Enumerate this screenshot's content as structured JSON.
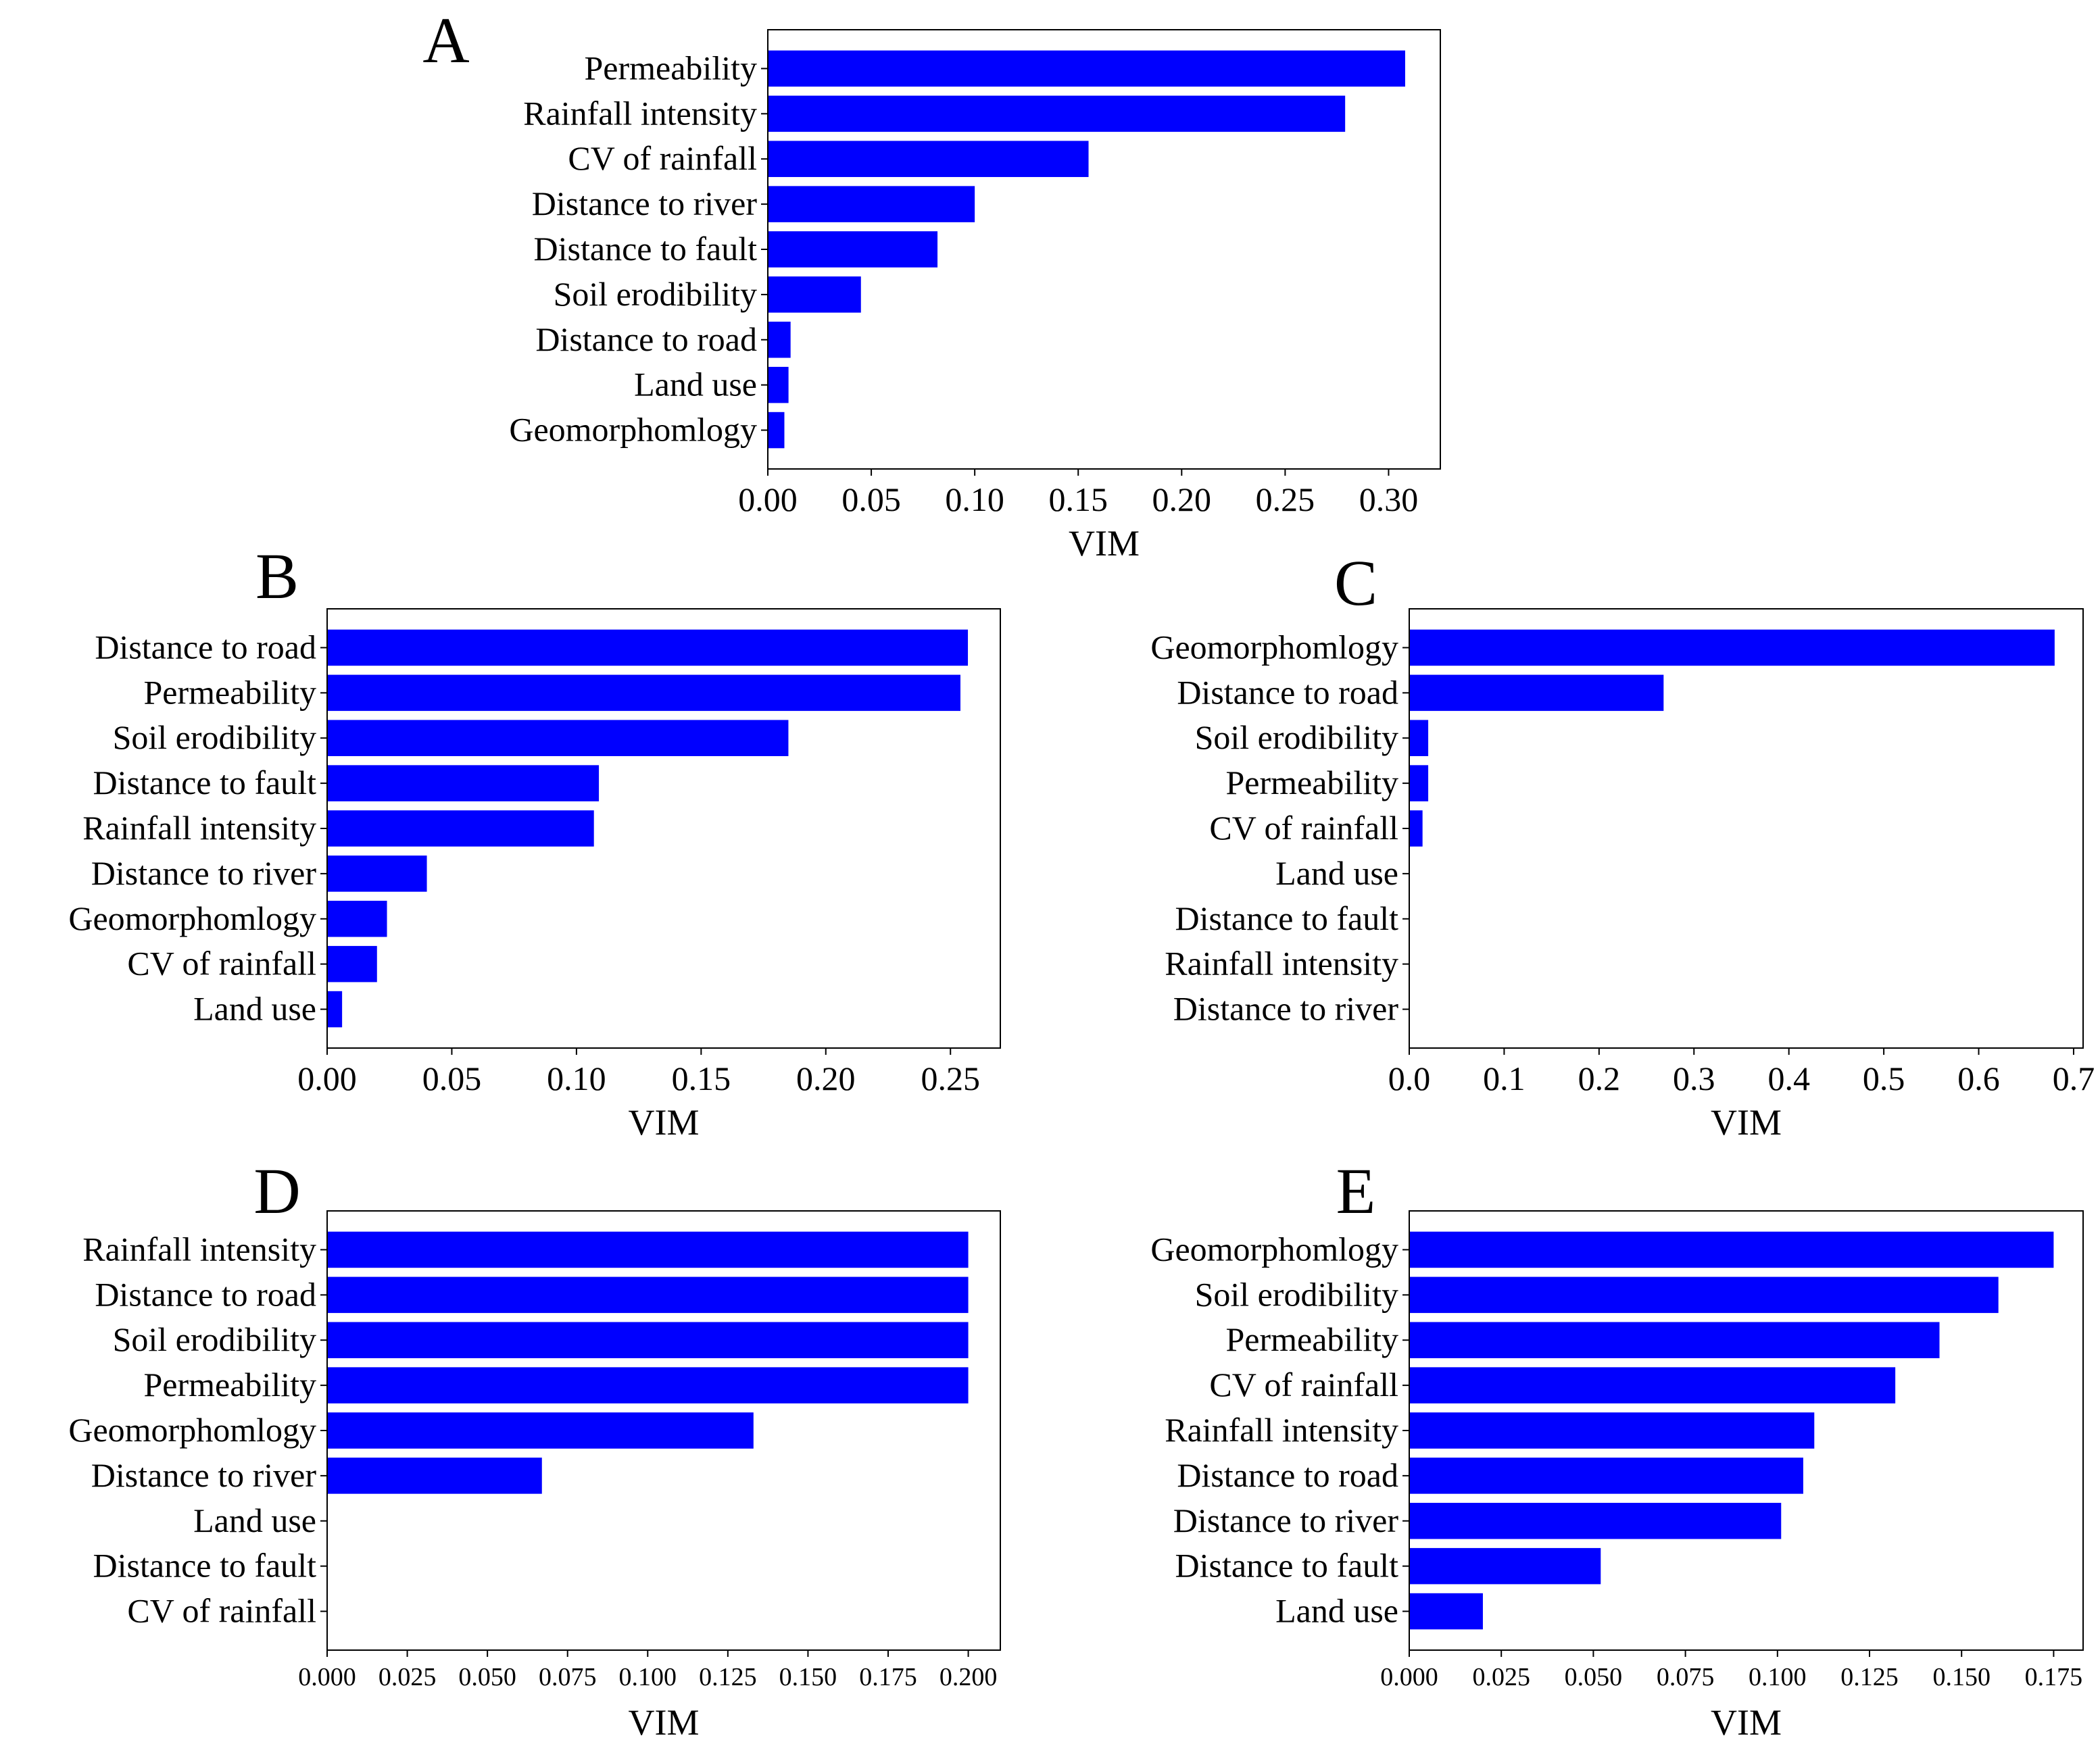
{
  "chart_data": [
    {
      "type": "bar",
      "orientation": "horizontal",
      "panel": "A",
      "categories": [
        "Permeability",
        "Rainfall intensity",
        "CV of rainfall",
        "Distance to river",
        "Distance to fault",
        "Soil erodibility",
        "Distance to road",
        "Land use",
        "Geomorphomlogy"
      ],
      "values": [
        0.308,
        0.279,
        0.155,
        0.1,
        0.082,
        0.045,
        0.011,
        0.01,
        0.008
      ],
      "xlabel": "VIM",
      "xlim": [
        0,
        0.325
      ],
      "xticks": [
        "0.00",
        "0.05",
        "0.10",
        "0.15",
        "0.20",
        "0.25",
        "0.30"
      ],
      "xtick_values": [
        0,
        0.05,
        0.1,
        0.15,
        0.2,
        0.25,
        0.3
      ],
      "color": "#0000ff"
    },
    {
      "type": "bar",
      "orientation": "horizontal",
      "panel": "B",
      "categories": [
        "Distance to road",
        "Permeability",
        "Soil erodibility",
        "Distance to fault",
        "Rainfall intensity",
        "Distance to river",
        "Geomorphomlogy",
        "CV of rainfall",
        "Land use"
      ],
      "values": [
        0.257,
        0.254,
        0.185,
        0.109,
        0.107,
        0.04,
        0.024,
        0.02,
        0.006
      ],
      "xlabel": "VIM",
      "xlim": [
        0,
        0.27
      ],
      "xticks": [
        "0.00",
        "0.05",
        "0.10",
        "0.15",
        "0.20",
        "0.25"
      ],
      "xtick_values": [
        0,
        0.05,
        0.1,
        0.15,
        0.2,
        0.25
      ],
      "color": "#0000ff"
    },
    {
      "type": "bar",
      "orientation": "horizontal",
      "panel": "C",
      "categories": [
        "Geomorphomlogy",
        "Distance to road",
        "Soil erodibility",
        "Permeability",
        "CV of rainfall",
        "Land use",
        "Distance to fault",
        "Rainfall intensity",
        "Distance to river"
      ],
      "values": [
        0.68,
        0.268,
        0.02,
        0.02,
        0.014,
        0,
        0,
        0,
        0
      ],
      "xlabel": "VIM",
      "xlim": [
        0,
        0.71
      ],
      "xticks": [
        "0.0",
        "0.1",
        "0.2",
        "0.3",
        "0.4",
        "0.5",
        "0.6",
        "0.7"
      ],
      "xtick_values": [
        0,
        0.1,
        0.2,
        0.3,
        0.4,
        0.5,
        0.6,
        0.7
      ],
      "color": "#0000ff"
    },
    {
      "type": "bar",
      "orientation": "horizontal",
      "panel": "D",
      "categories": [
        "Rainfall intensity",
        "Distance to road",
        "Soil erodibility",
        "Permeability",
        "Geomorphomlogy",
        "Distance to river",
        "Land use",
        "Distance to fault",
        "CV of rainfall"
      ],
      "values": [
        0.2,
        0.2,
        0.2,
        0.2,
        0.133,
        0.067,
        0,
        0,
        0
      ],
      "xlabel": "VIM",
      "xlim": [
        0,
        0.21
      ],
      "xticks": [
        "0.000",
        "0.025",
        "0.050",
        "0.075",
        "0.100",
        "0.125",
        "0.150",
        "0.175",
        "0.200"
      ],
      "xtick_values": [
        0,
        0.025,
        0.05,
        0.075,
        0.1,
        0.125,
        0.15,
        0.175,
        0.2
      ],
      "color": "#0000ff"
    },
    {
      "type": "bar",
      "orientation": "horizontal",
      "panel": "E",
      "categories": [
        "Geomorphomlogy",
        "Soil erodibility",
        "Permeability",
        "CV of rainfall",
        "Rainfall intensity",
        "Distance to road",
        "Distance to river",
        "Distance to fault",
        "Land use"
      ],
      "values": [
        0.175,
        0.16,
        0.144,
        0.132,
        0.11,
        0.107,
        0.101,
        0.052,
        0.02
      ],
      "xlabel": "VIM",
      "xlim": [
        0,
        0.183
      ],
      "xticks": [
        "0.000",
        "0.025",
        "0.050",
        "0.075",
        "0.100",
        "0.125",
        "0.150",
        "0.175"
      ],
      "xtick_values": [
        0,
        0.025,
        0.05,
        0.075,
        0.1,
        0.125,
        0.15,
        0.175
      ],
      "color": "#0000ff"
    }
  ]
}
